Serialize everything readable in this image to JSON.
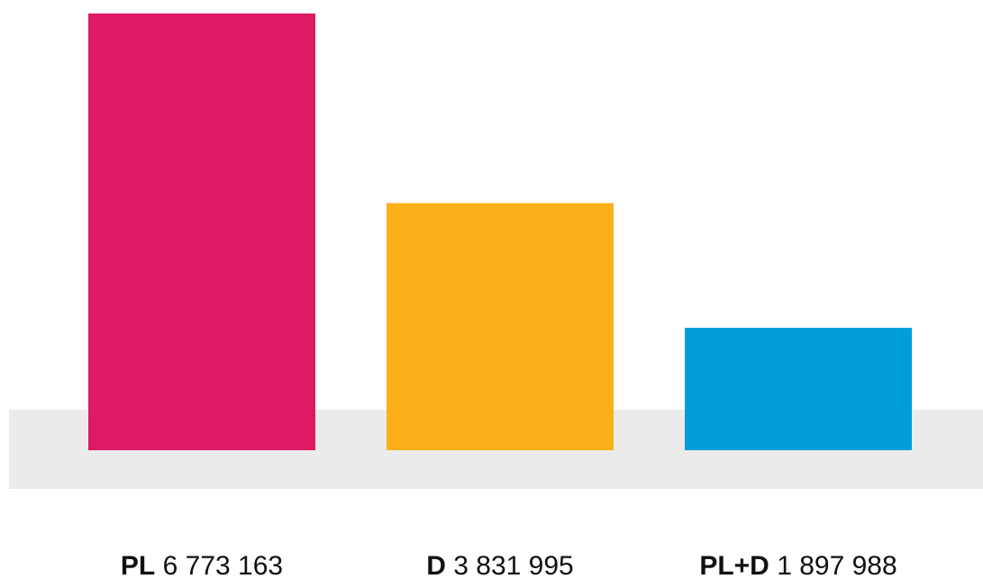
{
  "chart_data": {
    "type": "bar",
    "categories": [
      "PL",
      "D",
      "PL+D"
    ],
    "values": [
      6773163,
      3831995,
      1897988
    ],
    "value_labels": [
      "6 773 163",
      "3 831 995",
      "1 897 988"
    ],
    "colors": [
      "#dd1a63",
      "#fbaf19",
      "#009fdb"
    ],
    "baseline_band_color": "#ebebeb",
    "ylim": [
      0,
      6773163
    ],
    "grid": false,
    "legend": "none"
  }
}
